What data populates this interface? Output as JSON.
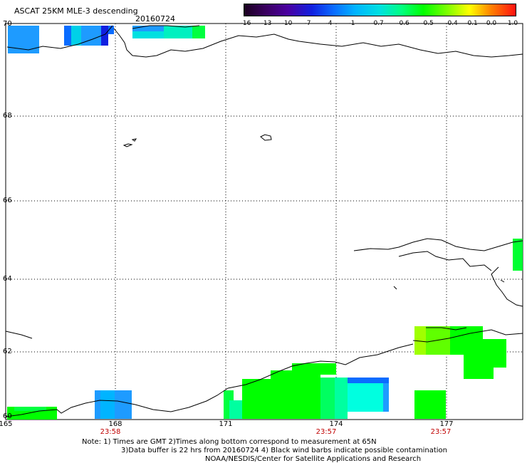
{
  "header": {
    "title": "ASCAT 25KM MLE-3 descending",
    "date": "20160724"
  },
  "colorbar": {
    "tick_labels": [
      "-16",
      "-13",
      "-10",
      "-7",
      "-4",
      "-1",
      "-0.7",
      "-0.6",
      "-0.5",
      "-0.4",
      "-0.1",
      "0.0",
      "1.0"
    ],
    "colors": [
      "#1a001f",
      "#3a0060",
      "#4a00a0",
      "#1020e0",
      "#0a6cff",
      "#00b4ff",
      "#00e0e0",
      "#00ff80",
      "#00ff00",
      "#80ff00",
      "#ffff00",
      "#ff8000",
      "#ff1010"
    ]
  },
  "map": {
    "lat_labels": [
      "70",
      "68",
      "66",
      "64",
      "62",
      "60"
    ],
    "lon_labels": [
      "165",
      "168",
      "171",
      "174",
      "177"
    ],
    "pass_times": [
      "23:58",
      "23:57",
      "23:57"
    ],
    "grid_style": "dotted",
    "land_fill": "none",
    "coastline_color": "#000000",
    "time_color": "#c00000"
  },
  "footer": {
    "note_line1": "Note: 1) Times are GMT 2)Times along bottom correspond to measurement at 65N",
    "note_line2": "3)Data buffer is 22 hrs from 20160724 4) Black wind barbs indicate possible contamination",
    "credit": "NOAA/NESDIS/Center for Satellite Applications and Research"
  }
}
